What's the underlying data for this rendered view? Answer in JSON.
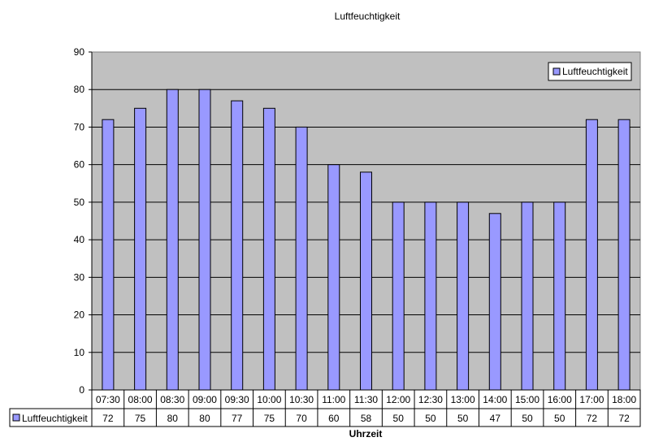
{
  "chart_data": {
    "type": "bar",
    "title": "Luftfeuchtigkeit",
    "xlabel": "Uhrzeit",
    "ylabel": "",
    "ylim": [
      0,
      90
    ],
    "yticks": [
      0,
      10,
      20,
      30,
      40,
      50,
      60,
      70,
      80,
      90
    ],
    "grid": true,
    "legend_position": "top-right",
    "data_table": true,
    "categories": [
      "07:30",
      "08:00",
      "08:30",
      "09:00",
      "09:30",
      "10:00",
      "10:30",
      "11:00",
      "11:30",
      "12:00",
      "12:30",
      "13:00",
      "14:00",
      "15:00",
      "16:00",
      "17:00",
      "18:00"
    ],
    "series": [
      {
        "name": "Luftfeuchtigkeit",
        "color": "#9999ff",
        "values": [
          72,
          75,
          80,
          80,
          77,
          75,
          70,
          60,
          58,
          50,
          50,
          50,
          47,
          50,
          50,
          72,
          72
        ]
      }
    ],
    "colors": {
      "plot_background": "#c0c0c0",
      "gridline": "#000000"
    }
  }
}
